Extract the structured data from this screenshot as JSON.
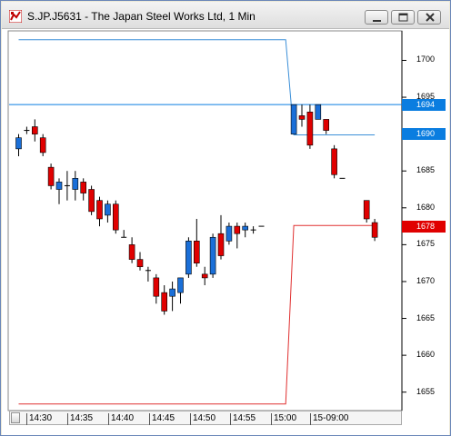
{
  "window": {
    "title": "S.JP.J5631 - The Japan Steel Works Ltd, 1 Min",
    "icons": [
      "app-icon",
      "minimize-icon",
      "maximize-icon",
      "close-icon"
    ]
  },
  "chart_data": {
    "type": "candlestick",
    "title": "S.JP.J5631 - The Japan Steel Works Ltd, 1 Min",
    "x_ticks": [
      "14:30",
      "14:35",
      "14:40",
      "14:45",
      "14:50",
      "14:55",
      "15:00",
      "15-09:00"
    ],
    "y_ticks": [
      1700,
      1695,
      1690,
      1685,
      1680,
      1675,
      1670,
      1665,
      1660,
      1655
    ],
    "ylim": [
      1652.5,
      1704
    ],
    "price_tags": [
      {
        "label": "1694",
        "value": 1694,
        "color": "#0a7de0"
      },
      {
        "label": "1690",
        "value": 1690,
        "color": "#0a7de0"
      },
      {
        "label": "1678",
        "value": 1677.5,
        "color": "#e00000"
      }
    ],
    "horizontal_line": {
      "value": 1694,
      "color": "#0a7de0"
    },
    "upper_band": {
      "color": "#3b8fd8",
      "points": [
        {
          "x": 0,
          "y": 1702.8
        },
        {
          "x": 33,
          "y": 1702.8
        },
        {
          "x": 34,
          "y": 1689.9
        },
        {
          "x": 44,
          "y": 1689.9
        }
      ]
    },
    "lower_band": {
      "color": "#e03030",
      "points": [
        {
          "x": 0,
          "y": 1653.4
        },
        {
          "x": 33,
          "y": 1653.4
        },
        {
          "x": 34,
          "y": 1677.6
        },
        {
          "x": 44,
          "y": 1677.6
        }
      ]
    },
    "candles": [
      {
        "o": 1688,
        "h": 1690,
        "l": 1687,
        "c": 1689.5
      },
      {
        "o": 1690.5,
        "h": 1691,
        "l": 1690,
        "c": 1690.5
      },
      {
        "o": 1691,
        "h": 1692,
        "l": 1689,
        "c": 1690
      },
      {
        "o": 1689.5,
        "h": 1690,
        "l": 1687,
        "c": 1687.5
      },
      {
        "o": 1685.5,
        "h": 1686,
        "l": 1682.5,
        "c": 1683
      },
      {
        "o": 1682.5,
        "h": 1684,
        "l": 1680.5,
        "c": 1683.5
      },
      {
        "o": 1683,
        "h": 1685,
        "l": 1681,
        "c": 1683
      },
      {
        "o": 1682.5,
        "h": 1685,
        "l": 1681,
        "c": 1684
      },
      {
        "o": 1683.5,
        "h": 1684,
        "l": 1681,
        "c": 1682
      },
      {
        "o": 1682.5,
        "h": 1683,
        "l": 1679,
        "c": 1679.5
      },
      {
        "o": 1681,
        "h": 1681.5,
        "l": 1677.5,
        "c": 1678.5
      },
      {
        "o": 1679,
        "h": 1681,
        "l": 1678,
        "c": 1680.5
      },
      {
        "o": 1680.5,
        "h": 1681,
        "l": 1676.5,
        "c": 1677
      },
      {
        "o": 1676,
        "h": 1677,
        "l": 1676,
        "c": 1676
      },
      {
        "o": 1675,
        "h": 1676,
        "l": 1672.5,
        "c": 1673
      },
      {
        "o": 1673,
        "h": 1674,
        "l": 1671.5,
        "c": 1672
      },
      {
        "o": 1671.5,
        "h": 1672,
        "l": 1670,
        "c": 1671.5
      },
      {
        "o": 1670.5,
        "h": 1671,
        "l": 1667,
        "c": 1668
      },
      {
        "o": 1668.5,
        "h": 1669.5,
        "l": 1665.5,
        "c": 1666
      },
      {
        "o": 1668,
        "h": 1670,
        "l": 1666,
        "c": 1669
      },
      {
        "o": 1668.5,
        "h": 1670.5,
        "l": 1667,
        "c": 1670.5
      },
      {
        "o": 1671,
        "h": 1676,
        "l": 1670.5,
        "c": 1675.5
      },
      {
        "o": 1675.5,
        "h": 1678.5,
        "l": 1672,
        "c": 1672.5
      },
      {
        "o": 1671,
        "h": 1672,
        "l": 1669.5,
        "c": 1670.5
      },
      {
        "o": 1671,
        "h": 1676.5,
        "l": 1670.5,
        "c": 1676
      },
      {
        "o": 1676.5,
        "h": 1679,
        "l": 1673,
        "c": 1673.5
      },
      {
        "o": 1675.5,
        "h": 1678,
        "l": 1675,
        "c": 1677.5
      },
      {
        "o": 1677.5,
        "h": 1678,
        "l": 1674.5,
        "c": 1676.5
      },
      {
        "o": 1677,
        "h": 1678,
        "l": 1676,
        "c": 1677.5
      },
      {
        "o": 1677,
        "h": 1677.5,
        "l": 1676.5,
        "c": 1677
      },
      {
        "o": 1677.5,
        "h": 1677.5,
        "l": 1677.5,
        "c": 1677.5
      },
      null,
      null,
      null,
      {
        "o": 1690,
        "h": 1694,
        "l": 1690,
        "c": 1694
      },
      {
        "o": 1692.5,
        "h": 1694,
        "l": 1691,
        "c": 1692
      },
      {
        "o": 1693,
        "h": 1694,
        "l": 1688,
        "c": 1688.5
      },
      {
        "o": 1692,
        "h": 1694,
        "l": 1692,
        "c": 1694
      },
      {
        "o": 1692,
        "h": 1692,
        "l": 1690,
        "c": 1690.5
      },
      {
        "o": 1688,
        "h": 1688.5,
        "l": 1684,
        "c": 1684.5
      },
      {
        "o": 1684,
        "h": 1684,
        "l": 1684,
        "c": 1684
      },
      null,
      null,
      {
        "o": 1681,
        "h": 1681,
        "l": 1678,
        "c": 1678.5
      },
      {
        "o": 1678,
        "h": 1678.5,
        "l": 1675.5,
        "c": 1676
      }
    ],
    "up_color": "#1a6fd8",
    "down_color": "#e00000",
    "grid": false
  }
}
